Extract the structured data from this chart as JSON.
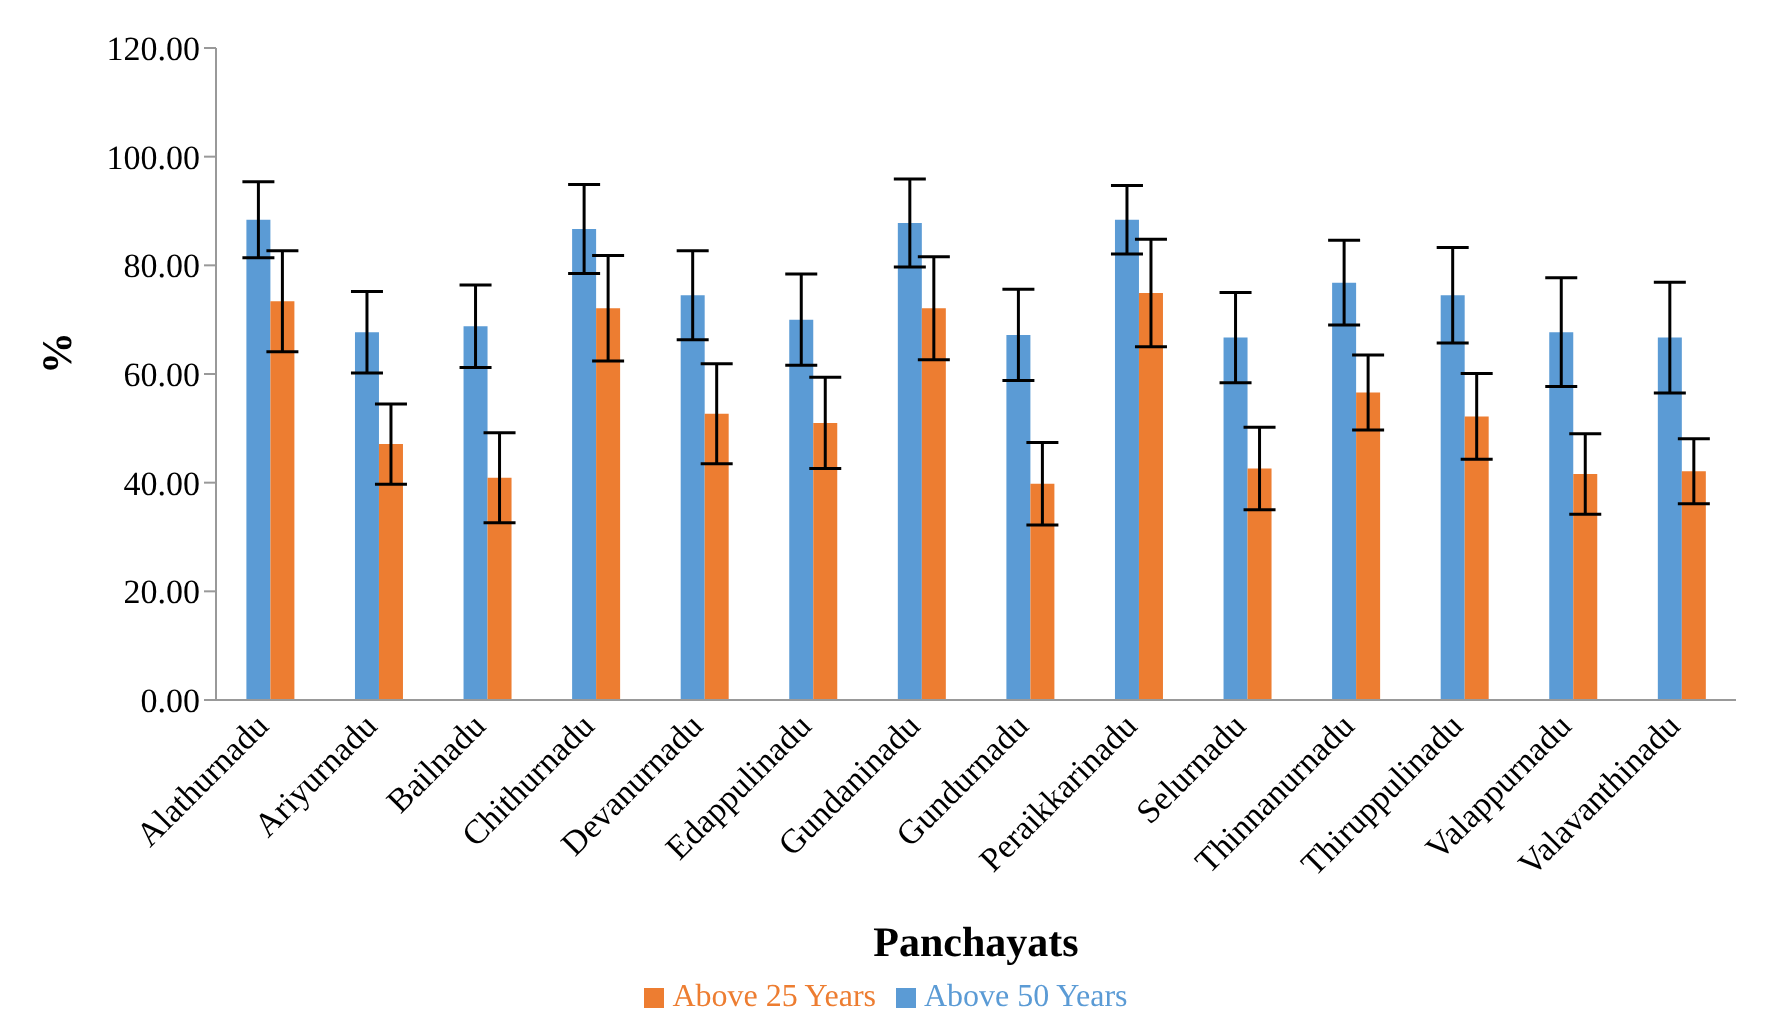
{
  "chart_data": {
    "type": "bar",
    "xlabel": "Panchayats",
    "ylabel": "%",
    "categories": [
      "Alathurnadu",
      "Ariyurnadu",
      "Bailnadu",
      "Chithurnadu",
      "Devanurnadu",
      "Edappulinadu",
      "Gundaninadu",
      "Gundurnadu",
      "Peraikkarinadu",
      "Selurnadu",
      "Thinnanurnadu",
      "Thiruppulinadu",
      "Valappurnadu",
      "Valavanthinadu"
    ],
    "series": [
      {
        "name": "Above 50 Years",
        "color": "#5b9bd5",
        "values": [
          88.4,
          67.7,
          68.8,
          86.7,
          74.5,
          70,
          87.8,
          67.2,
          88.4,
          66.7,
          76.8,
          74.5,
          67.7,
          66.7
        ],
        "errors": [
          7,
          7.5,
          7.6,
          8.2,
          8.2,
          8.4,
          8.1,
          8.4,
          6.3,
          8.3,
          7.8,
          8.8,
          10,
          10.2
        ]
      },
      {
        "name": "Above 25 Years",
        "color": "#ed7d31",
        "values": [
          73.4,
          47.1,
          40.9,
          72.1,
          52.7,
          51,
          72.1,
          39.8,
          74.9,
          42.6,
          56.6,
          52.2,
          41.6,
          42.1
        ],
        "errors": [
          9.3,
          7.4,
          8.3,
          9.7,
          9.2,
          8.4,
          9.5,
          7.6,
          9.9,
          7.6,
          6.9,
          7.9,
          7.4,
          6
        ]
      }
    ],
    "ylim": [
      0,
      120
    ],
    "yticks": [
      {
        "value": 0,
        "label": "0.00"
      },
      {
        "value": 20,
        "label": "20.00"
      },
      {
        "value": 40,
        "label": "40.00"
      },
      {
        "value": 60,
        "label": "60.00"
      },
      {
        "value": 80,
        "label": "80.00"
      },
      {
        "value": 100,
        "label": "100.00"
      },
      {
        "value": 120,
        "label": "120.00"
      }
    ],
    "legend": "bottom"
  }
}
